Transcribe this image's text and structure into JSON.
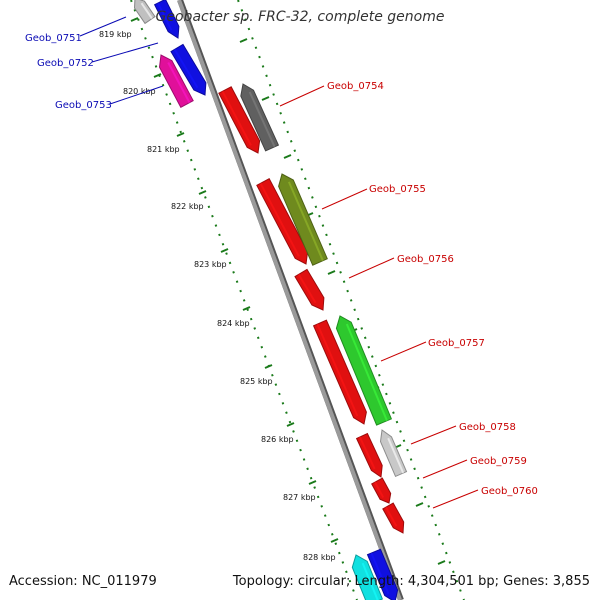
{
  "title": "Geobacter sp. FRC-32, complete genome",
  "footer": {
    "accession": "Accession: NC_011979",
    "summary": "Topology: circular; Length: 4,304,501 bp; Genes: 3,855"
  },
  "colors": {
    "backbone": "#888888",
    "tick": "#1a7a1a",
    "label_blue": "#0a0ab4",
    "label_red": "#c80000"
  },
  "kbp_labels": [
    "819 kbp",
    "820 kbp",
    "821 kbp",
    "822 kbp",
    "823 kbp",
    "824 kbp",
    "825 kbp",
    "826 kbp",
    "827 kbp",
    "828 kbp"
  ],
  "gene_labels_left": [
    "Geob_0751",
    "Geob_0752",
    "Geob_0753"
  ],
  "gene_labels_right": [
    "Geob_0754",
    "Geob_0755",
    "Geob_0756",
    "Geob_0757",
    "Geob_0758",
    "Geob_0759",
    "Geob_0760"
  ],
  "features": [
    {
      "color": "#c0c0c0"
    },
    {
      "color": "#1010e0"
    },
    {
      "color": "#1010e0"
    },
    {
      "color": "#e0109a"
    },
    {
      "color": "#e01010"
    },
    {
      "color": "#606060"
    },
    {
      "color": "#e01010"
    },
    {
      "color": "#6f8a1e"
    },
    {
      "color": "#e01010"
    },
    {
      "color": "#e01010"
    },
    {
      "color": "#2ec82e"
    },
    {
      "color": "#e01010"
    },
    {
      "color": "#c8c8c8"
    },
    {
      "color": "#e01010"
    },
    {
      "color": "#e01010"
    },
    {
      "color": "#10e0e0"
    },
    {
      "color": "#1010e0"
    }
  ]
}
